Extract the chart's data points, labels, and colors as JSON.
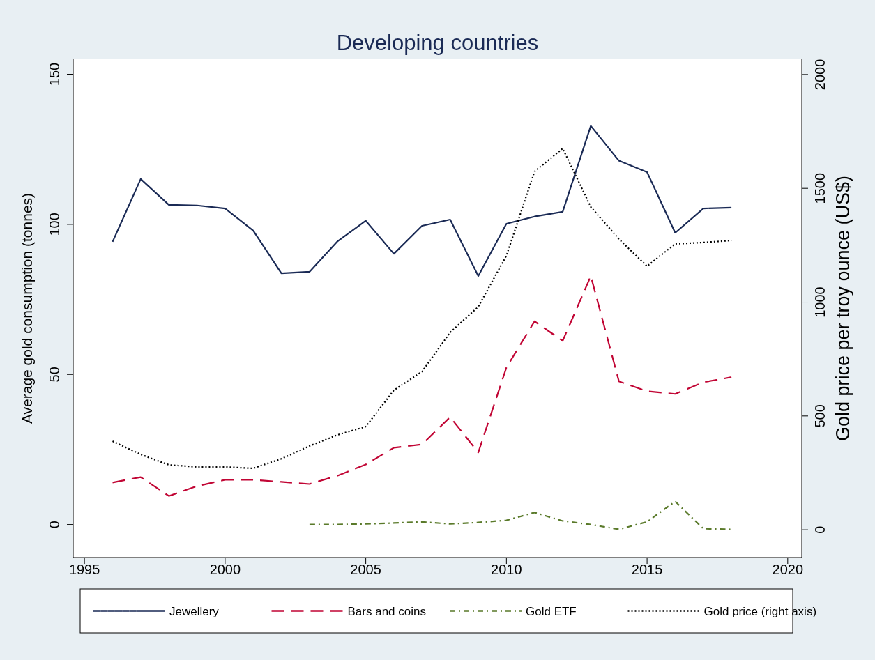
{
  "chart_data": {
    "type": "line",
    "title": "Developing countries",
    "ylabel": "Average gold consumption (tonnes)",
    "y2label": "Gold price per troy ounce (US$)",
    "x": [
      1996,
      1997,
      1998,
      1999,
      2000,
      2001,
      2002,
      2003,
      2004,
      2005,
      2006,
      2007,
      2008,
      2009,
      2010,
      2011,
      2012,
      2013,
      2014,
      2015,
      2016,
      2017,
      2018
    ],
    "series": [
      {
        "name": "Jewellery",
        "color": "#1a2a55",
        "line_style": "solid",
        "values": [
          94.2,
          115.1,
          106.5,
          106.3,
          105.3,
          97.9,
          83.7,
          84.2,
          94.4,
          101.2,
          90.2,
          99.5,
          101.6,
          82.8,
          100.2,
          102.6,
          104.2,
          132.8,
          121.2,
          117.4,
          97.2,
          105.3,
          105.6
        ]
      },
      {
        "name": "Bars and coins",
        "color": "#c10534",
        "line_style": "dashed",
        "values": [
          14.0,
          15.8,
          9.5,
          12.8,
          14.9,
          14.9,
          14.2,
          13.5,
          16.3,
          20.0,
          25.6,
          26.7,
          35.8,
          24.0,
          52.3,
          67.7,
          61.2,
          82.8,
          47.7,
          44.4,
          43.5,
          47.4,
          49.1
        ]
      },
      {
        "name": "Gold ETF",
        "color": "#5a7a2a",
        "line_style": "dashdot",
        "values": [
          null,
          null,
          null,
          null,
          null,
          null,
          null,
          0,
          0,
          0.2,
          0.5,
          0.9,
          0.2,
          0.7,
          1.4,
          4.0,
          1.2,
          0,
          -1.6,
          0.9,
          7.7,
          -1.4,
          -1.6
        ]
      },
      {
        "name": "Gold price (right axis)",
        "color": "#000000",
        "line_style": "dotted",
        "axis": "y2",
        "values": [
          389,
          331,
          285,
          276,
          276,
          270,
          312,
          368,
          417,
          453,
          613,
          695,
          867,
          980,
          1204,
          1574,
          1675,
          1418,
          1277,
          1158,
          1256,
          1262,
          1271
        ]
      }
    ],
    "xlim": [
      1994.6,
      2020.5
    ],
    "xticks": [
      1995,
      2000,
      2005,
      2010,
      2015,
      2020
    ],
    "ylim": [
      -11,
      155
    ],
    "yticks": [
      0,
      50,
      100,
      150
    ],
    "y2lim": [
      -122,
      2067
    ],
    "y2ticks": [
      0,
      500,
      1000,
      1500,
      2000
    ],
    "grid": false,
    "legend": "bottom",
    "marker": "none"
  }
}
